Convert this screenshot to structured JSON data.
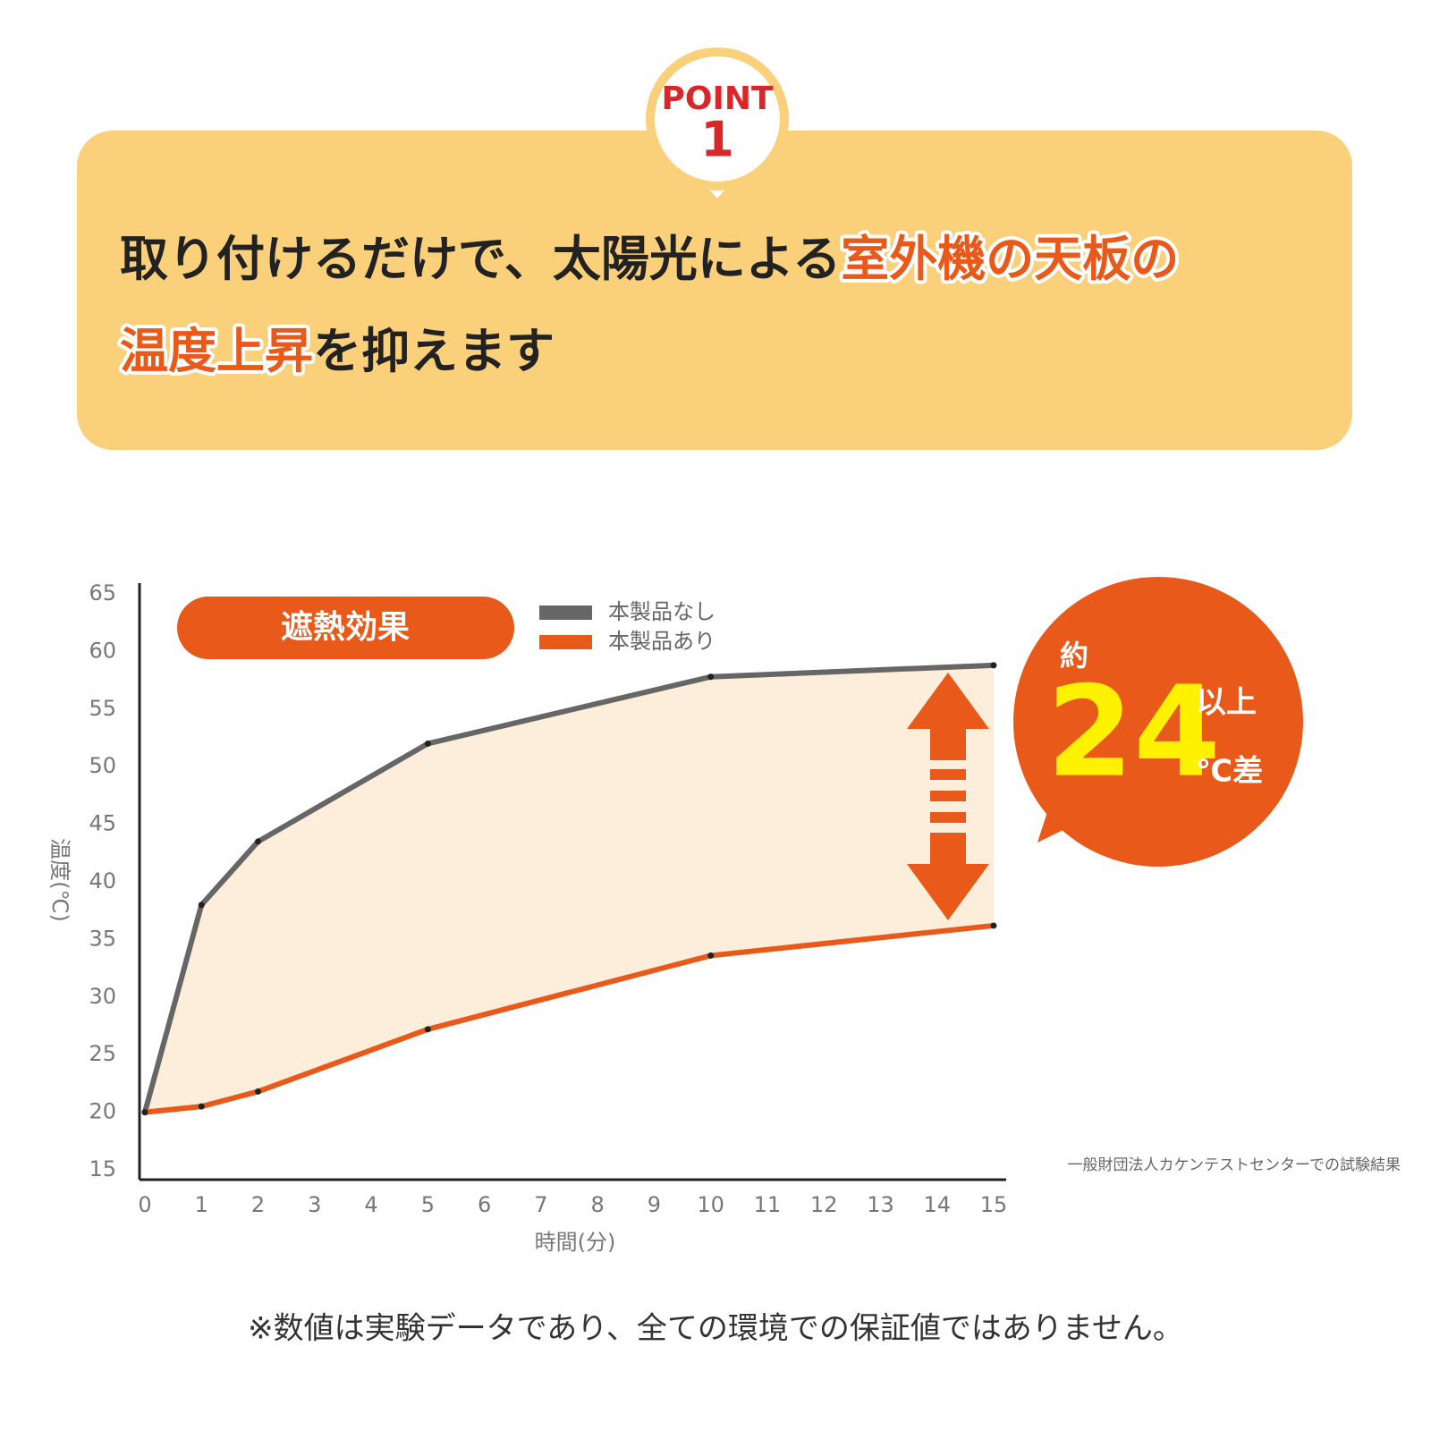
{
  "header": {
    "badge_word": "POINT",
    "badge_number": "1",
    "title_parts": [
      "取り付けるだけで、太陽光による",
      "室外機の天板の",
      "温度上昇",
      "を抑えます"
    ]
  },
  "chart_data": {
    "type": "line",
    "x": [
      0,
      1,
      2,
      5,
      10,
      15
    ],
    "series": [
      {
        "name": "本製品なし",
        "color": "#666666",
        "values": [
          20,
          38,
          43.5,
          52,
          57.8,
          58.8
        ]
      },
      {
        "name": "本製品あり",
        "color": "#e8591a",
        "values": [
          20,
          20.5,
          21.8,
          27.2,
          33.6,
          36.2
        ]
      }
    ],
    "xlim": [
      0,
      15
    ],
    "xticks": [
      0,
      1,
      2,
      3,
      4,
      5,
      6,
      7,
      8,
      9,
      10,
      11,
      12,
      13,
      14,
      15
    ],
    "ylim": [
      15,
      65
    ],
    "yticks": [
      15,
      20,
      25,
      30,
      35,
      40,
      45,
      50,
      55,
      60,
      65
    ],
    "x_label": "時間(分)",
    "y_label": "温度(℃)",
    "fill_between": "#fdeedb",
    "annotations": {
      "badge": "遮熱効果",
      "about": "約",
      "difference": "24",
      "or_more": "以上",
      "unit": "℃差"
    },
    "source": "一般財団法人カケンテストセンターでの試験結果"
  },
  "footnote": "※数値は実験データであり、全ての環境での保証値ではありません。"
}
